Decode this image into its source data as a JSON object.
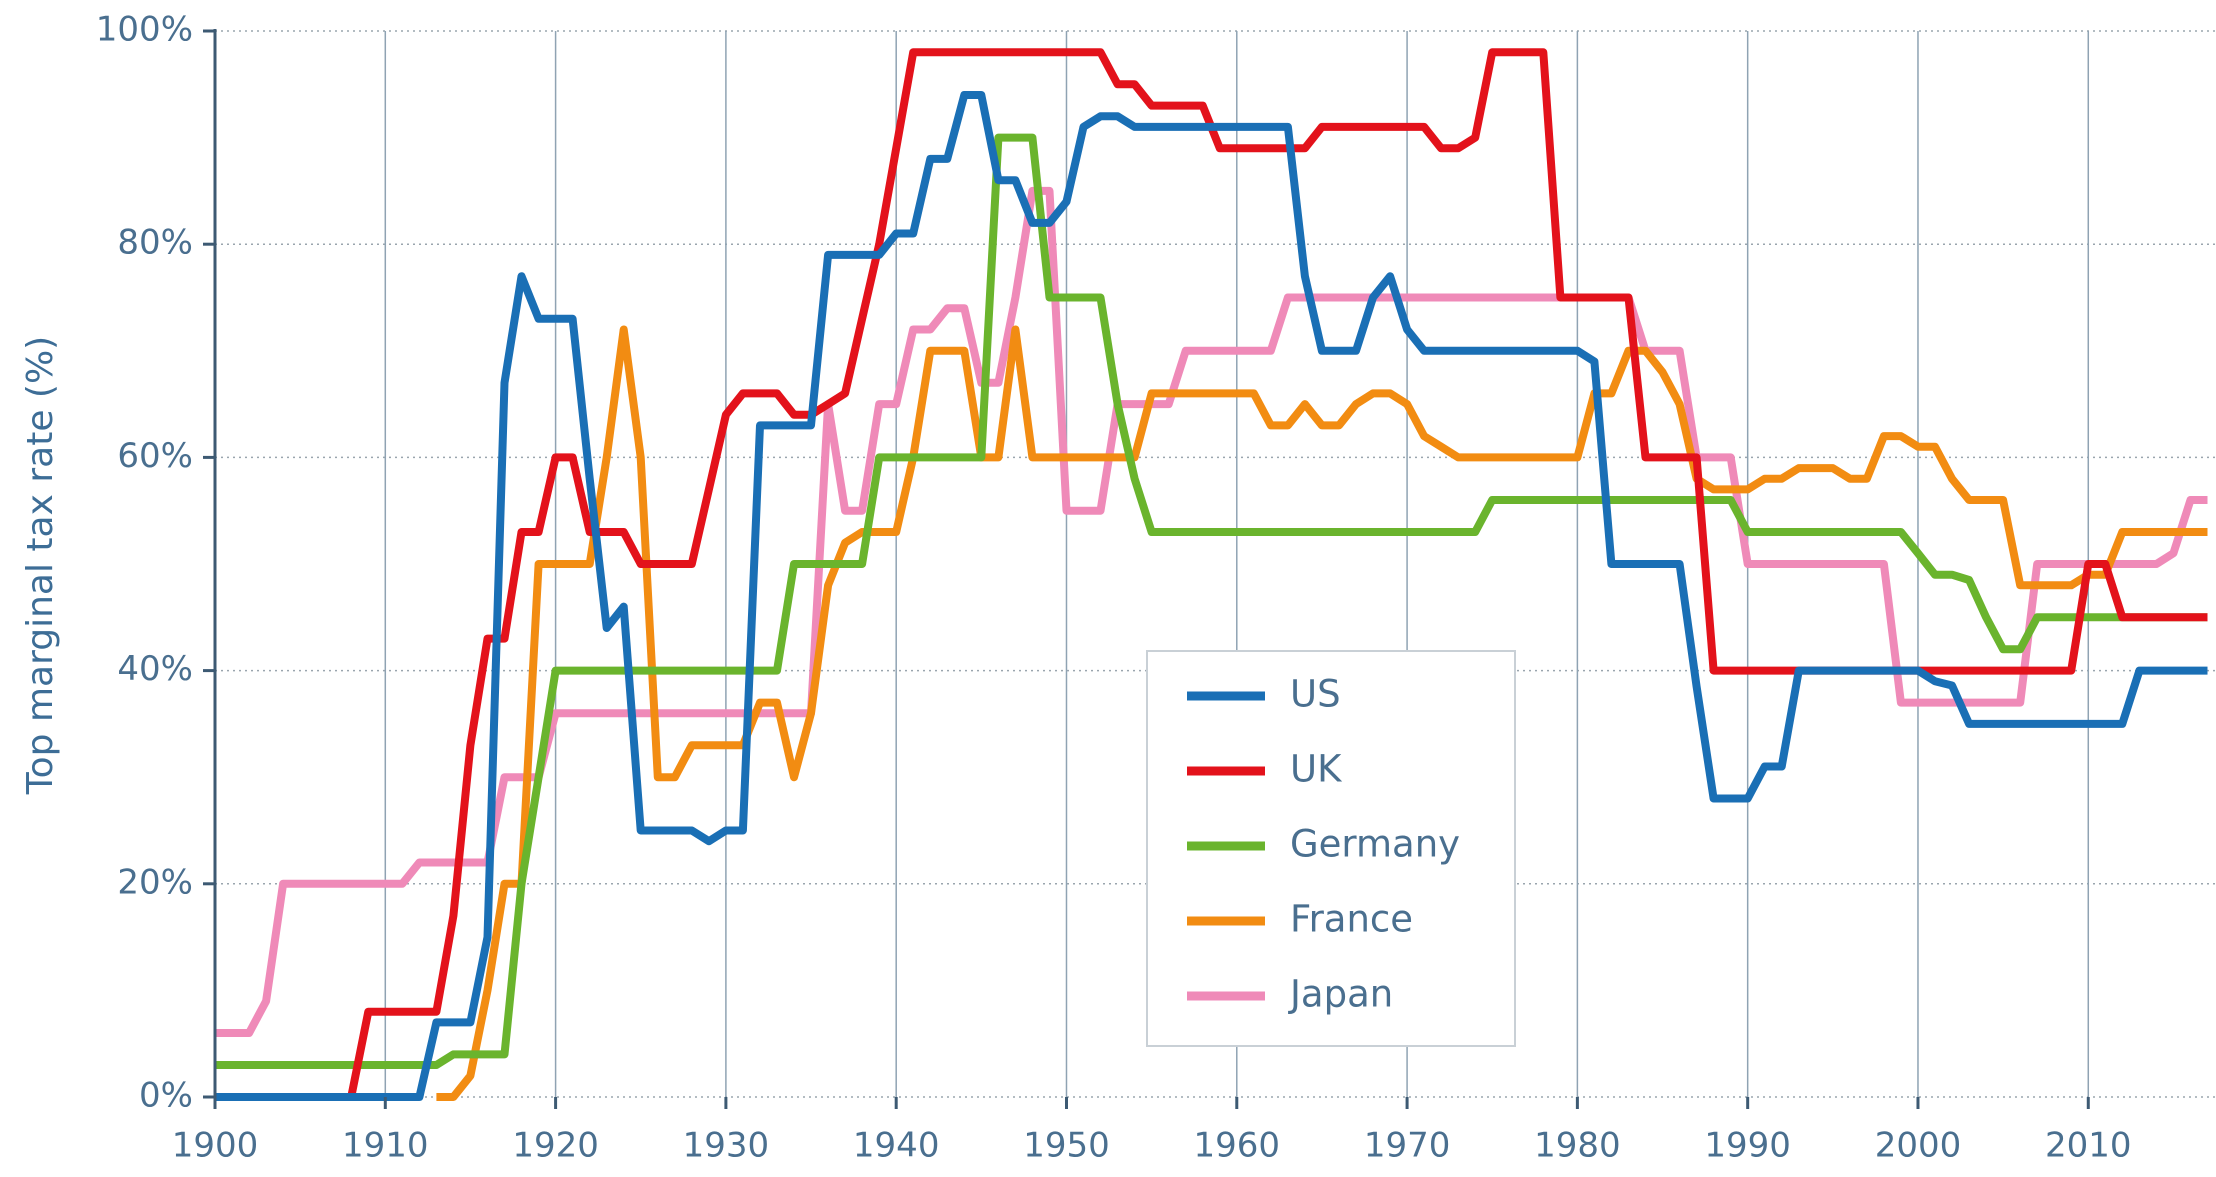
{
  "chart_data": {
    "type": "line",
    "y_label": "Top marginal tax rate (%)",
    "x": [
      1900,
      1901,
      1902,
      1903,
      1904,
      1905,
      1906,
      1907,
      1908,
      1909,
      1910,
      1911,
      1912,
      1913,
      1914,
      1915,
      1916,
      1917,
      1918,
      1919,
      1920,
      1921,
      1922,
      1923,
      1924,
      1925,
      1926,
      1927,
      1928,
      1929,
      1930,
      1931,
      1932,
      1933,
      1934,
      1935,
      1936,
      1937,
      1938,
      1939,
      1940,
      1941,
      1942,
      1943,
      1944,
      1945,
      1946,
      1947,
      1948,
      1949,
      1950,
      1951,
      1952,
      1953,
      1954,
      1955,
      1956,
      1957,
      1958,
      1959,
      1960,
      1961,
      1962,
      1963,
      1964,
      1965,
      1966,
      1967,
      1968,
      1969,
      1970,
      1971,
      1972,
      1973,
      1974,
      1975,
      1976,
      1977,
      1978,
      1979,
      1980,
      1981,
      1982,
      1983,
      1984,
      1985,
      1986,
      1987,
      1988,
      1989,
      1990,
      1991,
      1992,
      1993,
      1994,
      1995,
      1996,
      1997,
      1998,
      1999,
      2000,
      2001,
      2002,
      2003,
      2004,
      2005,
      2006,
      2007,
      2008,
      2009,
      2010,
      2011,
      2012,
      2013,
      2014,
      2015,
      2016,
      2017
    ],
    "series": [
      {
        "name": "US",
        "color": "#1a6fb5",
        "values": [
          0,
          0,
          0,
          0,
          0,
          0,
          0,
          0,
          0,
          0,
          0,
          0,
          0,
          7,
          7,
          7,
          15,
          67,
          77,
          73,
          73,
          73,
          58,
          44,
          46,
          25,
          25,
          25,
          25,
          24,
          25,
          25,
          63,
          63,
          63,
          63,
          79,
          79,
          79,
          79,
          81,
          81,
          88,
          88,
          94,
          94,
          86,
          86,
          82,
          82,
          84,
          91,
          92,
          92,
          91,
          91,
          91,
          91,
          91,
          91,
          91,
          91,
          91,
          91,
          77,
          70,
          70,
          70,
          75,
          77,
          72,
          70,
          70,
          70,
          70,
          70,
          70,
          70,
          70,
          70,
          70,
          69,
          50,
          50,
          50,
          50,
          50,
          38.5,
          28,
          28,
          28,
          31,
          31,
          40,
          40,
          40,
          40,
          40,
          40,
          40,
          40,
          39,
          38.6,
          35,
          35,
          35,
          35,
          35,
          35,
          35,
          35,
          35,
          35,
          40,
          40,
          40,
          40,
          40
        ]
      },
      {
        "name": "UK",
        "color": "#e3121b",
        "values": [
          0,
          0,
          0,
          0,
          0,
          0,
          0,
          0,
          0,
          8,
          8,
          8,
          8,
          8,
          17,
          33,
          43,
          43,
          53,
          53,
          60,
          60,
          53,
          53,
          53,
          50,
          50,
          50,
          50,
          57,
          64,
          66,
          66,
          66,
          64,
          64,
          65,
          66,
          73,
          80,
          89,
          98,
          98,
          98,
          98,
          98,
          98,
          98,
          98,
          98,
          98,
          98,
          98,
          95,
          95,
          93,
          93,
          93,
          93,
          89,
          89,
          89,
          89,
          89,
          89,
          91,
          91,
          91,
          91,
          91,
          91,
          91,
          89,
          89,
          90,
          98,
          98,
          98,
          98,
          75,
          75,
          75,
          75,
          75,
          60,
          60,
          60,
          60,
          40,
          40,
          40,
          40,
          40,
          40,
          40,
          40,
          40,
          40,
          40,
          40,
          40,
          40,
          40,
          40,
          40,
          40,
          40,
          40,
          40,
          40,
          50,
          50,
          45,
          45,
          45,
          45,
          45,
          45
        ]
      },
      {
        "name": "Germany",
        "color": "#6ab42d",
        "values": [
          3,
          3,
          3,
          3,
          3,
          3,
          3,
          3,
          3,
          3,
          3,
          3,
          3,
          3,
          4,
          4,
          4,
          4,
          20,
          30,
          40,
          40,
          40,
          40,
          40,
          40,
          40,
          40,
          40,
          40,
          40,
          40,
          40,
          40,
          50,
          50,
          50,
          50,
          50,
          60,
          60,
          60,
          60,
          60,
          60,
          60,
          90,
          90,
          90,
          75,
          75,
          75,
          75,
          65,
          58,
          53,
          53,
          53,
          53,
          53,
          53,
          53,
          53,
          53,
          53,
          53,
          53,
          53,
          53,
          53,
          53,
          53,
          53,
          53,
          53,
          56,
          56,
          56,
          56,
          56,
          56,
          56,
          56,
          56,
          56,
          56,
          56,
          56,
          56,
          56,
          53,
          53,
          53,
          53,
          53,
          53,
          53,
          53,
          53,
          53,
          51,
          49,
          49,
          48.5,
          45,
          42,
          42,
          45,
          45,
          45,
          45,
          45,
          45,
          45,
          45,
          45,
          45,
          45
        ]
      },
      {
        "name": "France",
        "color": "#f28c12",
        "values": [
          null,
          null,
          null,
          null,
          null,
          null,
          null,
          null,
          null,
          null,
          null,
          null,
          null,
          0,
          0,
          2,
          10,
          20,
          20,
          50,
          50,
          50,
          50,
          60,
          72,
          60,
          30,
          30,
          33,
          33,
          33,
          33,
          37,
          37,
          30,
          36,
          48,
          52,
          53,
          53,
          53,
          60,
          70,
          70,
          70,
          60,
          60,
          72,
          60,
          60,
          60,
          60,
          60,
          60,
          60,
          66,
          66,
          66,
          66,
          66,
          66,
          66,
          63,
          63,
          65,
          63,
          63,
          65,
          66,
          66,
          65,
          62,
          61,
          60,
          60,
          60,
          60,
          60,
          60,
          60,
          60,
          66,
          66,
          70,
          70,
          68,
          65,
          58,
          57,
          57,
          57,
          58,
          58,
          59,
          59,
          59,
          58,
          58,
          62,
          62,
          61,
          61,
          58,
          56,
          56,
          56,
          48,
          48,
          48,
          48,
          49,
          49,
          53,
          53,
          53,
          53,
          53,
          53
        ]
      },
      {
        "name": "Japan",
        "color": "#ef8ab8",
        "values": [
          6,
          6,
          6,
          9,
          20,
          20,
          20,
          20,
          20,
          20,
          20,
          20,
          22,
          22,
          22,
          22,
          22,
          30,
          30,
          30,
          36,
          36,
          36,
          36,
          36,
          36,
          36,
          36,
          36,
          36,
          36,
          36,
          36,
          36,
          36,
          36,
          65,
          55,
          55,
          65,
          65,
          72,
          72,
          74,
          74,
          67,
          67,
          75,
          85,
          85,
          55,
          55,
          55,
          65,
          65,
          65,
          65,
          70,
          70,
          70,
          70,
          70,
          70,
          75,
          75,
          75,
          75,
          75,
          75,
          75,
          75,
          75,
          75,
          75,
          75,
          75,
          75,
          75,
          75,
          75,
          75,
          75,
          75,
          75,
          70,
          70,
          70,
          60,
          60,
          60,
          50,
          50,
          50,
          50,
          50,
          50,
          50,
          50,
          50,
          37,
          37,
          37,
          37,
          37,
          37,
          37,
          37,
          50,
          50,
          50,
          50,
          50,
          50,
          50,
          50,
          51,
          56,
          56
        ]
      }
    ],
    "xlim": [
      1900,
      2017.5
    ],
    "xticks": [
      1900,
      1910,
      1920,
      1930,
      1940,
      1950,
      1960,
      1970,
      1980,
      1990,
      2000,
      2010
    ],
    "ylim": [
      0,
      100
    ],
    "yticks": [
      {
        "value": 0,
        "label": "0%"
      },
      {
        "value": 20,
        "label": "20%"
      },
      {
        "value": 40,
        "label": "40%"
      },
      {
        "value": 60,
        "label": "60%"
      },
      {
        "value": 80,
        "label": "80%"
      },
      {
        "value": 100,
        "label": "100%"
      }
    ],
    "grid": true
  }
}
